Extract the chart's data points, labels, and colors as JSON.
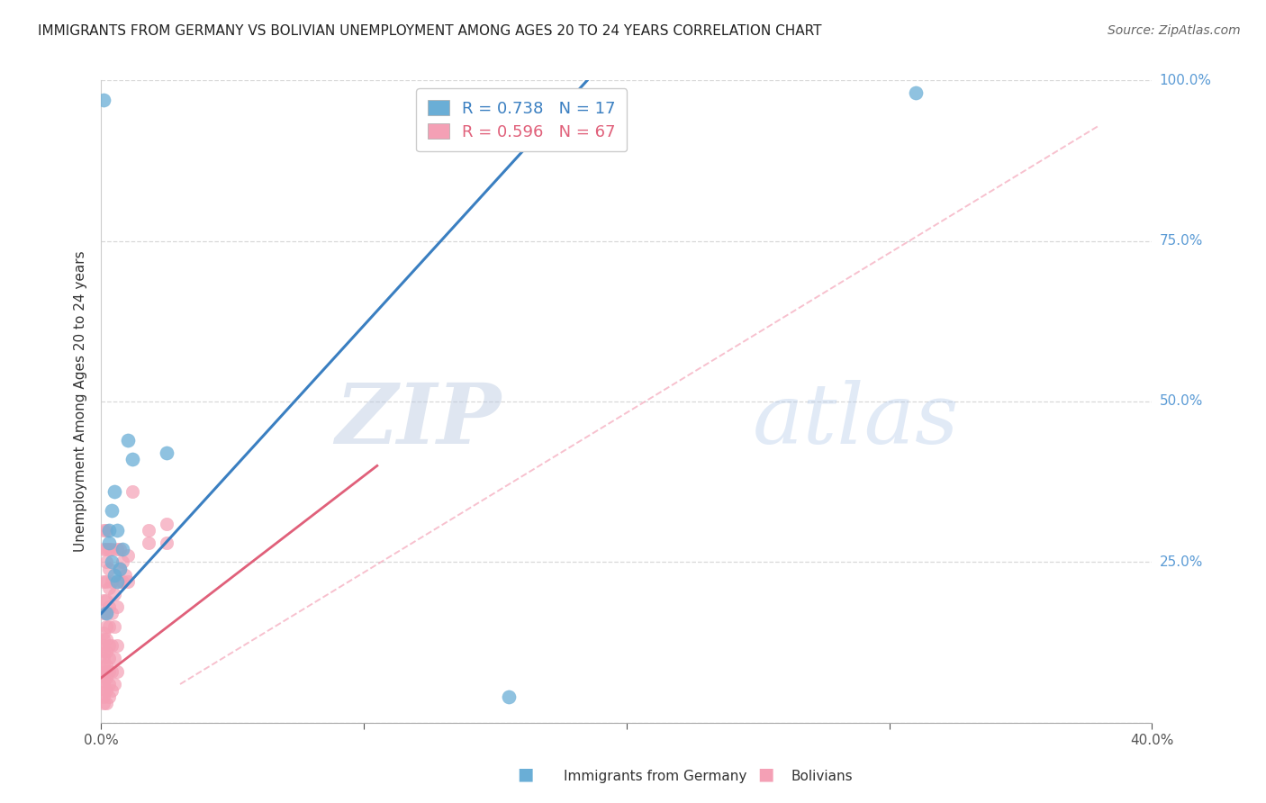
{
  "title": "IMMIGRANTS FROM GERMANY VS BOLIVIAN UNEMPLOYMENT AMONG AGES 20 TO 24 YEARS CORRELATION CHART",
  "source": "Source: ZipAtlas.com",
  "ylabel": "Unemployment Among Ages 20 to 24 years",
  "xlim": [
    0.0,
    0.4
  ],
  "ylim": [
    0.0,
    1.0
  ],
  "xticks": [
    0.0,
    0.1,
    0.2,
    0.3,
    0.4
  ],
  "xticklabels": [
    "0.0%",
    "",
    "",
    "",
    "40.0%"
  ],
  "yticks_right": [
    0.0,
    0.25,
    0.5,
    0.75,
    1.0
  ],
  "yticklabels_right": [
    "",
    "25.0%",
    "50.0%",
    "75.0%",
    "100.0%"
  ],
  "legend_label1": "Immigrants from Germany",
  "legend_label2": "Bolivians",
  "blue_color": "#6aaed6",
  "pink_color": "#f4a0b5",
  "blue_scatter": [
    [
      0.001,
      0.97
    ],
    [
      0.002,
      0.17
    ],
    [
      0.003,
      0.3
    ],
    [
      0.003,
      0.28
    ],
    [
      0.004,
      0.33
    ],
    [
      0.004,
      0.25
    ],
    [
      0.005,
      0.36
    ],
    [
      0.005,
      0.23
    ],
    [
      0.006,
      0.3
    ],
    [
      0.006,
      0.22
    ],
    [
      0.007,
      0.24
    ],
    [
      0.008,
      0.27
    ],
    [
      0.01,
      0.44
    ],
    [
      0.012,
      0.41
    ],
    [
      0.025,
      0.42
    ],
    [
      0.155,
      0.04
    ],
    [
      0.31,
      0.98
    ]
  ],
  "pink_scatter": [
    [
      0.001,
      0.03
    ],
    [
      0.001,
      0.04
    ],
    [
      0.001,
      0.05
    ],
    [
      0.001,
      0.06
    ],
    [
      0.001,
      0.07
    ],
    [
      0.001,
      0.08
    ],
    [
      0.001,
      0.09
    ],
    [
      0.001,
      0.1
    ],
    [
      0.001,
      0.11
    ],
    [
      0.001,
      0.12
    ],
    [
      0.001,
      0.13
    ],
    [
      0.001,
      0.14
    ],
    [
      0.001,
      0.17
    ],
    [
      0.001,
      0.19
    ],
    [
      0.001,
      0.22
    ],
    [
      0.001,
      0.27
    ],
    [
      0.001,
      0.3
    ],
    [
      0.002,
      0.03
    ],
    [
      0.002,
      0.05
    ],
    [
      0.002,
      0.07
    ],
    [
      0.002,
      0.08
    ],
    [
      0.002,
      0.09
    ],
    [
      0.002,
      0.11
    ],
    [
      0.002,
      0.13
    ],
    [
      0.002,
      0.15
    ],
    [
      0.002,
      0.17
    ],
    [
      0.002,
      0.19
    ],
    [
      0.002,
      0.22
    ],
    [
      0.002,
      0.25
    ],
    [
      0.002,
      0.27
    ],
    [
      0.002,
      0.3
    ],
    [
      0.003,
      0.04
    ],
    [
      0.003,
      0.06
    ],
    [
      0.003,
      0.08
    ],
    [
      0.003,
      0.1
    ],
    [
      0.003,
      0.12
    ],
    [
      0.003,
      0.15
    ],
    [
      0.003,
      0.18
    ],
    [
      0.003,
      0.21
    ],
    [
      0.003,
      0.24
    ],
    [
      0.003,
      0.27
    ],
    [
      0.004,
      0.05
    ],
    [
      0.004,
      0.08
    ],
    [
      0.004,
      0.12
    ],
    [
      0.004,
      0.17
    ],
    [
      0.004,
      0.22
    ],
    [
      0.004,
      0.27
    ],
    [
      0.005,
      0.06
    ],
    [
      0.005,
      0.1
    ],
    [
      0.005,
      0.15
    ],
    [
      0.005,
      0.2
    ],
    [
      0.006,
      0.08
    ],
    [
      0.006,
      0.12
    ],
    [
      0.006,
      0.18
    ],
    [
      0.006,
      0.27
    ],
    [
      0.007,
      0.22
    ],
    [
      0.007,
      0.24
    ],
    [
      0.007,
      0.27
    ],
    [
      0.008,
      0.22
    ],
    [
      0.008,
      0.25
    ],
    [
      0.009,
      0.23
    ],
    [
      0.01,
      0.22
    ],
    [
      0.01,
      0.26
    ],
    [
      0.012,
      0.36
    ],
    [
      0.018,
      0.28
    ],
    [
      0.018,
      0.3
    ],
    [
      0.025,
      0.28
    ],
    [
      0.025,
      0.31
    ]
  ],
  "blue_line": {
    "x0": 0.0,
    "y0": 0.17,
    "x1": 0.185,
    "y1": 1.0
  },
  "pink_line": {
    "x0": 0.0,
    "y0": 0.07,
    "x1": 0.105,
    "y1": 0.4
  },
  "dashed_line": {
    "x0": 0.03,
    "y0": 0.06,
    "x1": 0.38,
    "y1": 0.93
  },
  "watermark_zip": "ZIP",
  "watermark_atlas": "atlas",
  "grid_color": "#d8d8d8",
  "background_color": "#ffffff",
  "title_fontsize": 11,
  "source_fontsize": 10,
  "axis_label_fontsize": 11,
  "tick_fontsize": 11,
  "legend_fontsize": 13
}
